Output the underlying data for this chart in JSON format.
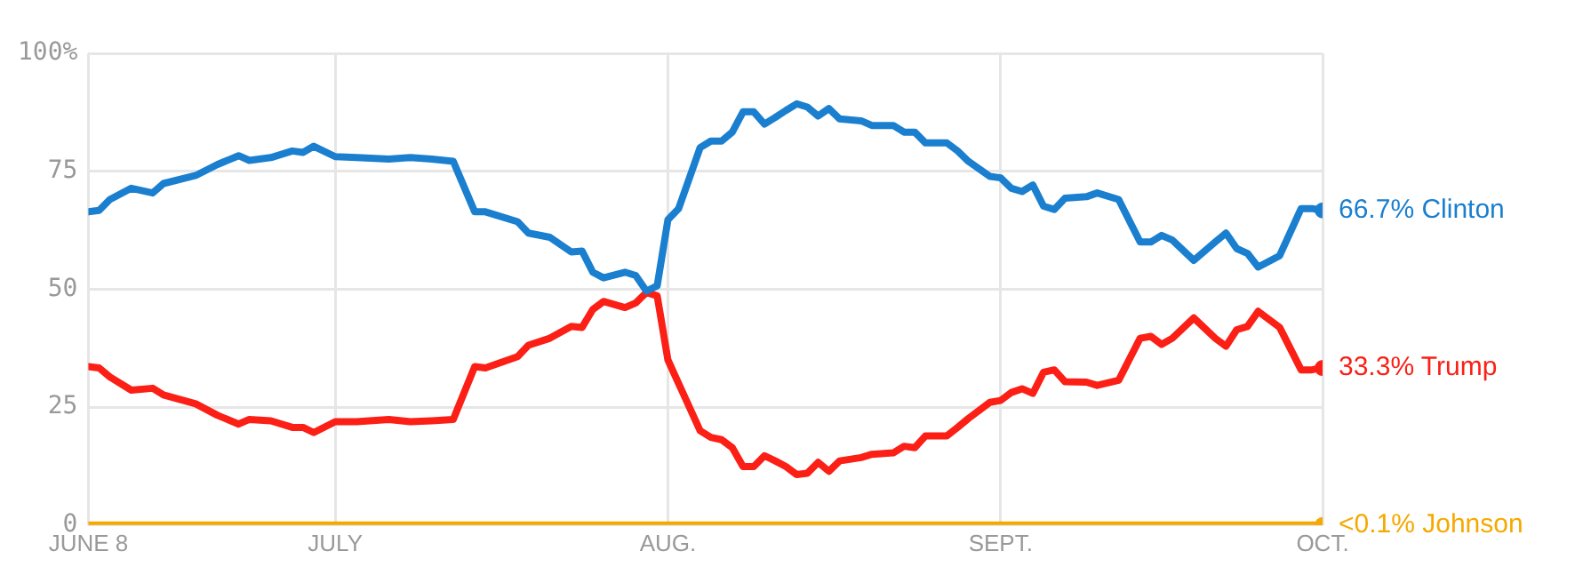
{
  "chart_data": {
    "type": "line",
    "x": [
      "--06-08",
      "--06-09",
      "--06-10",
      "--06-12",
      "--06-14",
      "--06-15",
      "--06-18",
      "--06-20",
      "--06-22",
      "--06-23",
      "--06-25",
      "--06-27",
      "--06-28",
      "--06-29",
      "--07-01",
      "--07-03",
      "--07-06",
      "--07-08",
      "--07-10",
      "--07-12",
      "--07-14",
      "--07-15",
      "--07-18",
      "--07-19",
      "--07-21",
      "--07-23",
      "--07-24",
      "--07-25",
      "--07-26",
      "--07-28",
      "--07-29",
      "--07-30",
      "--07-31",
      "--08-01",
      "--08-02",
      "--08-04",
      "--08-05",
      "--08-06",
      "--08-07",
      "--08-08",
      "--08-09",
      "--08-10",
      "--08-11",
      "--08-12",
      "--08-13",
      "--08-14",
      "--08-15",
      "--08-16",
      "--08-17",
      "--08-19",
      "--08-20",
      "--08-22",
      "--08-23",
      "--08-24",
      "--08-25",
      "--08-27",
      "--08-28",
      "--08-29",
      "--08-31",
      "--09-01",
      "--09-02",
      "--09-03",
      "--09-04",
      "--09-05",
      "--09-06",
      "--09-07",
      "--09-09",
      "--09-10",
      "--09-12",
      "--09-14",
      "--09-15",
      "--09-16",
      "--09-17",
      "--09-19",
      "--09-21",
      "--09-22",
      "--09-23",
      "--09-24",
      "--09-25",
      "--09-27",
      "--09-29",
      "--09-30",
      "--10-01"
    ],
    "series": [
      {
        "name": "Clinton",
        "color": "#1a7fcf",
        "values": [
          66.4,
          66.7,
          69,
          71.4,
          70.4,
          72.4,
          74.1,
          76.4,
          78.3,
          77.3,
          77.9,
          79.3,
          79,
          80.3,
          78.1,
          77.9,
          77.6,
          77.9,
          77.6,
          77.1,
          66.4,
          66.4,
          64.3,
          61.9,
          61,
          57.9,
          58.1,
          53.6,
          52.4,
          53.6,
          52.9,
          49.6,
          50.7,
          64.7,
          67.1,
          80,
          81.4,
          81.4,
          83.3,
          87.6,
          87.6,
          85,
          86.4,
          87.9,
          89.3,
          88.6,
          86.7,
          88.3,
          86.1,
          85.7,
          84.7,
          84.7,
          83.3,
          83.3,
          81,
          81,
          79.3,
          77.1,
          73.9,
          73.6,
          71.4,
          70.7,
          72.1,
          67.6,
          66.9,
          69.3,
          69.6,
          70.4,
          69,
          60,
          60,
          61.4,
          60.4,
          56.1,
          60,
          61.9,
          58.6,
          57.6,
          54.7,
          57.1,
          67.1,
          67.1,
          66.7
        ],
        "value_labels": [
          null,
          null,
          null,
          null,
          null,
          null,
          null,
          null,
          null,
          null,
          null,
          null,
          null,
          null,
          null,
          null,
          null,
          null,
          null,
          null,
          null,
          null,
          null,
          null,
          null,
          null,
          null,
          null,
          null,
          null,
          null,
          null,
          null,
          null,
          null,
          null,
          null,
          null,
          null,
          null,
          null,
          null,
          null,
          null,
          null,
          null,
          null,
          null,
          null,
          null,
          null,
          null,
          null,
          null,
          null,
          null,
          null,
          null,
          null,
          null,
          null,
          null,
          null,
          null,
          null,
          null,
          null,
          null,
          null,
          null,
          null,
          null,
          null,
          null,
          null,
          null,
          null,
          null,
          null,
          null,
          null,
          null,
          "66.7%"
        ]
      },
      {
        "name": "Trump",
        "color": "#fb1f16",
        "values": [
          33.6,
          33.3,
          31.4,
          28.6,
          29,
          27.6,
          25.7,
          23.3,
          21.4,
          22.4,
          22.1,
          20.7,
          20.7,
          19.6,
          21.9,
          21.9,
          22.4,
          21.9,
          22.1,
          22.4,
          33.6,
          33.3,
          35.7,
          38.1,
          39.6,
          42.1,
          41.9,
          45.7,
          47.4,
          46.1,
          47.1,
          49.3,
          48.6,
          35,
          30,
          20,
          18.6,
          18.1,
          16.4,
          12.4,
          12.4,
          14.7,
          13.6,
          12.4,
          10.7,
          11,
          13.3,
          11.4,
          13.6,
          14.3,
          15,
          15.3,
          16.7,
          16.4,
          18.9,
          18.9,
          20.7,
          22.6,
          26,
          26.4,
          28.1,
          28.9,
          27.9,
          32.4,
          32.9,
          30.4,
          30.3,
          29.6,
          30.7,
          39.6,
          40,
          38.3,
          39.6,
          43.9,
          39.6,
          37.9,
          41.4,
          42.1,
          45.3,
          41.9,
          32.9,
          32.9,
          33.3
        ],
        "value_labels": [
          null,
          null,
          null,
          null,
          null,
          null,
          null,
          null,
          null,
          null,
          null,
          null,
          null,
          null,
          null,
          null,
          null,
          null,
          null,
          null,
          null,
          null,
          null,
          null,
          null,
          null,
          null,
          null,
          null,
          null,
          null,
          null,
          null,
          null,
          null,
          null,
          null,
          null,
          null,
          null,
          null,
          null,
          null,
          null,
          null,
          null,
          null,
          null,
          null,
          null,
          null,
          null,
          null,
          null,
          null,
          null,
          null,
          null,
          null,
          null,
          null,
          null,
          null,
          null,
          null,
          null,
          null,
          null,
          null,
          null,
          null,
          null,
          null,
          null,
          null,
          null,
          null,
          null,
          null,
          null,
          null,
          null,
          "33.3%"
        ]
      },
      {
        "name": "Johnson",
        "color": "#f5a900",
        "x": [
          "--06-08",
          "--10-01"
        ],
        "values": [
          0,
          0
        ],
        "value_labels": [
          null,
          "<0.1%"
        ]
      }
    ],
    "xlim": [
      "--06-08",
      "--10-01"
    ],
    "xticks": [
      {
        "value": "--06-08",
        "label": "JUNE 8"
      },
      {
        "value": "--07-01",
        "label": "JULY"
      },
      {
        "value": "--08-01",
        "label": "AUG."
      },
      {
        "value": "--09-01",
        "label": "SEPT."
      },
      {
        "value": "--10-01",
        "label": "OCT."
      }
    ],
    "ylim": [
      0,
      100
    ],
    "yticks": [
      0,
      25,
      50,
      75,
      {
        "value": 100,
        "label": "100%"
      }
    ],
    "grid": true,
    "legend": false
  }
}
